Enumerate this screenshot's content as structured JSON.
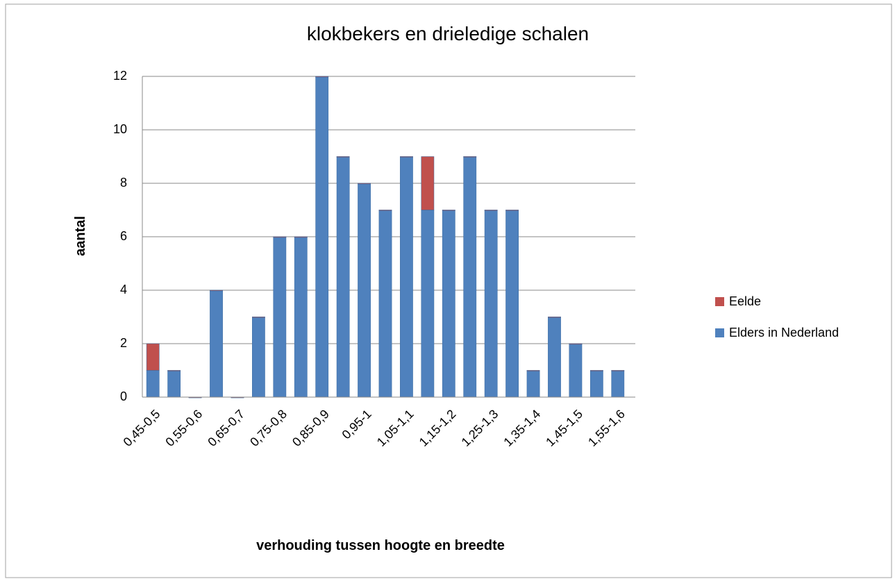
{
  "chart_data": {
    "type": "bar",
    "stacked": true,
    "title": "klokbekers en drieledige schalen",
    "x_label": "verhouding tussen hoogte en breedte",
    "y_label": "aantal",
    "categories": [
      "0,45-0,5",
      null,
      "0,55-0,6",
      null,
      "0,65-0,7",
      null,
      "0,75-0,8",
      null,
      "0,85-0,9",
      null,
      "0,95-1",
      null,
      "1,05-1,1",
      null,
      "1,15-1,2",
      null,
      "1,25-1,3",
      null,
      "1,35-1,4",
      null,
      "1,45-1,5",
      null,
      "1,55-1,6"
    ],
    "series": [
      {
        "name": "Eelde",
        "color": "#c0504d",
        "values": [
          1,
          0,
          0,
          0,
          0,
          0,
          0,
          0,
          0,
          0,
          0,
          0,
          0,
          2,
          0,
          0,
          0,
          0,
          0,
          0,
          0,
          0,
          0
        ]
      },
      {
        "name": "Elders in Nederland",
        "color": "#4f81bd",
        "values": [
          1,
          1,
          0,
          4,
          0,
          3,
          6,
          6,
          12,
          9,
          8,
          7,
          9,
          7,
          7,
          9,
          7,
          7,
          1,
          3,
          2,
          1,
          1
        ]
      }
    ],
    "ylim": [
      0,
      12
    ],
    "yticks": [
      0,
      2,
      4,
      6,
      8,
      10,
      12
    ],
    "grid": true,
    "legend": "right"
  }
}
